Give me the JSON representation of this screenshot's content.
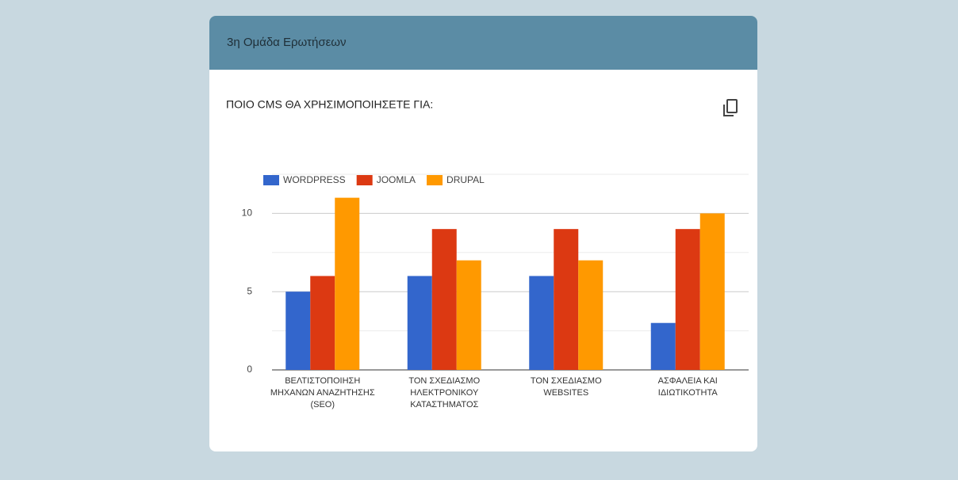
{
  "header": {
    "title": "3η Ομάδα Ερωτήσεων"
  },
  "chart_data": {
    "type": "bar",
    "title": "ΠΟΙΟ CMS ΘΑ ΧΡΗΣΙΜΟΠΟΙΗΣΕΤΕ ΓΙΑ:",
    "categories": [
      "ΒΕΛΤΙΣΤΟΠΟΙΗΣΗ\nΜΗΧΑΝΩΝ ΑΝΑΖΗΤΗΣΗΣ\n(SEO)",
      "ΤΟΝ ΣΧΕΔΙΑΣΜΟ\nΗΛΕΚΤΡΟΝΙΚΟΥ\nΚΑΤΑΣΤΗΜΑΤΟΣ",
      "ΤΟΝ ΣΧΕΔΙΑΣΜΟ\nWEBSITES",
      "ΑΣΦΑΛΕΙΑ ΚΑΙ\nΙΔΙΩΤΙΚΟΤΗΤΑ"
    ],
    "series": [
      {
        "name": "WORDPRESS",
        "color": "#3366cc",
        "values": [
          5,
          6,
          6,
          3
        ]
      },
      {
        "name": "JOOMLA",
        "color": "#dc3912",
        "values": [
          6,
          9,
          9,
          9
        ]
      },
      {
        "name": "DRUPAL",
        "color": "#ff9900",
        "values": [
          11,
          7,
          7,
          10
        ]
      }
    ],
    "ylim": [
      0,
      12.5
    ],
    "yticks": [
      0,
      5,
      10
    ],
    "minor_yticks": [
      2.5,
      7.5,
      12.5
    ],
    "grid": true,
    "legend": "top"
  }
}
